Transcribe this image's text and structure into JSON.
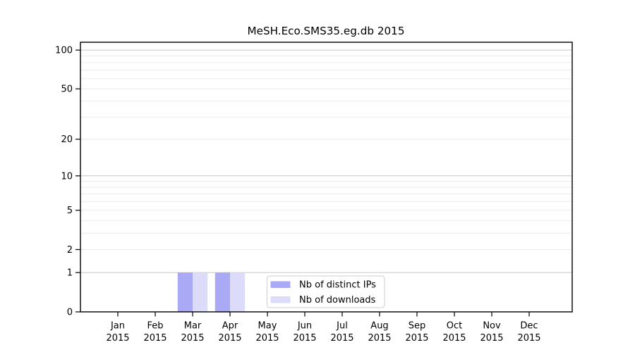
{
  "figure": {
    "title": "MeSH.Eco.SMS35.eg.db 2015"
  },
  "chart_data": {
    "type": "bar",
    "title": "MeSH.Eco.SMS35.eg.db 2015",
    "xlabel": "",
    "ylabel": "",
    "categories": [
      "Jan 2015",
      "Feb 2015",
      "Mar 2015",
      "Apr 2015",
      "May 2015",
      "Jun 2015",
      "Jul 2015",
      "Aug 2015",
      "Sep 2015",
      "Oct 2015",
      "Nov 2015",
      "Dec 2015"
    ],
    "series": [
      {
        "name": "Nb of distinct IPs",
        "color": "#a9a9f5",
        "values": [
          0,
          0,
          1,
          1,
          0,
          0,
          0,
          0,
          0,
          0,
          0,
          0
        ]
      },
      {
        "name": "Nb of downloads",
        "color": "#dcdcfa",
        "values": [
          0,
          0,
          1,
          1,
          0,
          0,
          0,
          0,
          0,
          0,
          0,
          0
        ]
      }
    ],
    "yscale": "log1p",
    "ylim": [
      0,
      115
    ],
    "yticks": [
      0,
      1,
      2,
      5,
      10,
      20,
      50,
      100
    ],
    "grid": {
      "major_values": [
        1,
        10,
        100
      ],
      "minor_values": [
        2,
        3,
        4,
        5,
        6,
        7,
        8,
        9,
        20,
        30,
        40,
        50,
        60,
        70,
        80,
        90
      ],
      "major_color": "#c6c6c6",
      "minor_color": "#ebebeb"
    },
    "legend": {
      "position": "lower center",
      "entries": [
        "Nb of distinct IPs",
        "Nb of downloads"
      ]
    },
    "colors": {
      "spine": "#000000",
      "tick_label": "#000000",
      "legend_border": "#cccccc",
      "legend_background": "#ffffff"
    }
  }
}
